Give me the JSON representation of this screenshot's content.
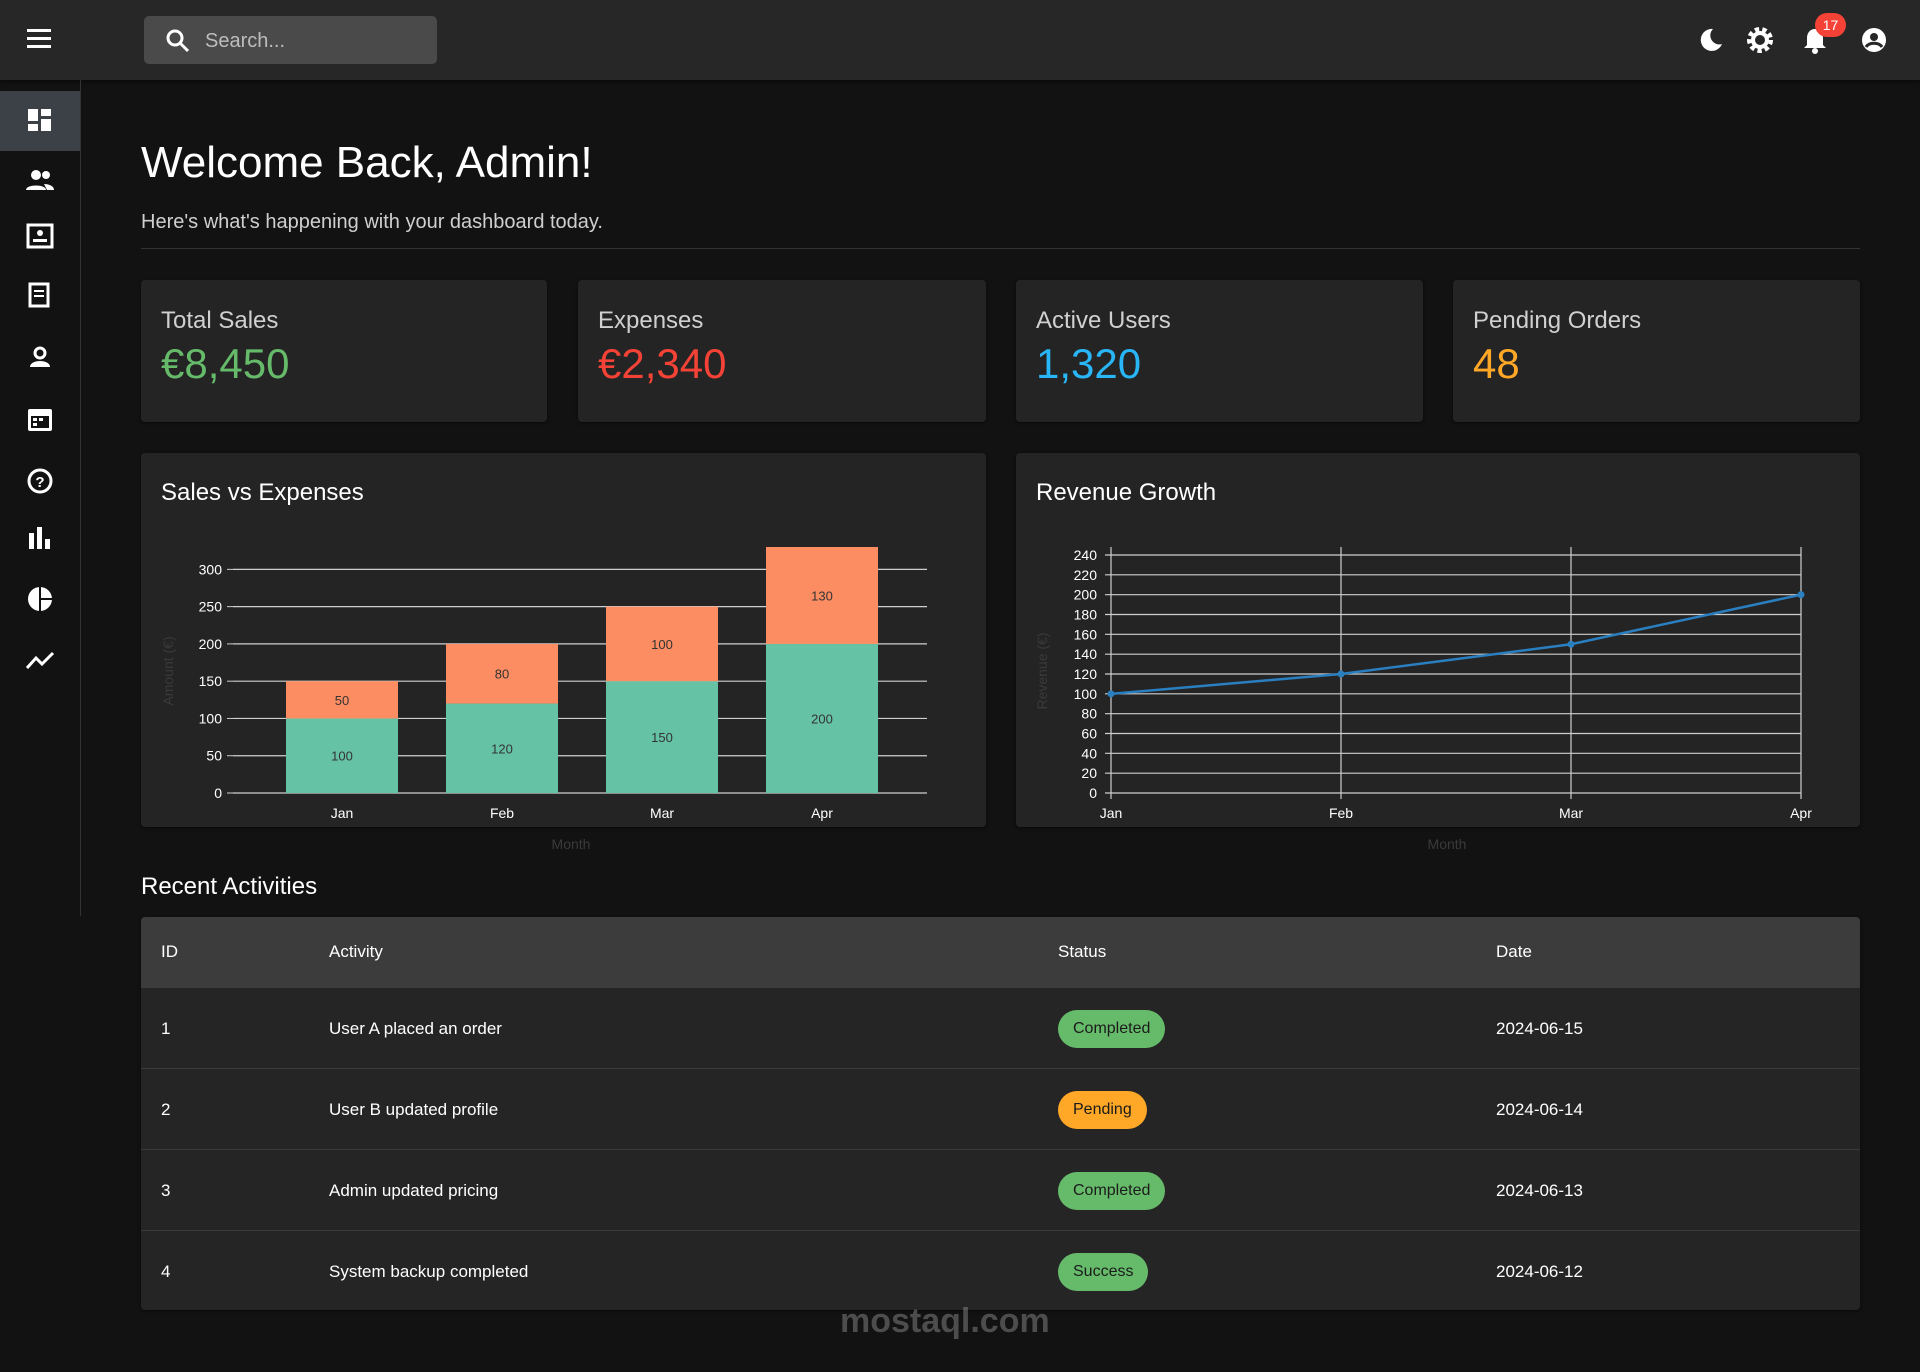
{
  "header": {
    "search_placeholder": "Search...",
    "notification_count": 17
  },
  "welcome": {
    "title": "Welcome Back, Admin!",
    "subtitle": "Here's what's happening with your dashboard today."
  },
  "stats": [
    {
      "label": "Total Sales",
      "value": "€8,450",
      "color": "#66bb6a"
    },
    {
      "label": "Expenses",
      "value": "€2,340",
      "color": "#f44336"
    },
    {
      "label": "Active Users",
      "value": "1,320",
      "color": "#29b6f6"
    },
    {
      "label": "Pending Orders",
      "value": "48",
      "color": "#ffa726"
    }
  ],
  "chart_data": [
    {
      "type": "bar",
      "stacked": true,
      "title": "Sales vs Expenses",
      "categories": [
        "Jan",
        "Feb",
        "Mar",
        "Apr"
      ],
      "series": [
        {
          "color": "#66c2a5",
          "values": [
            100,
            120,
            150,
            200
          ]
        },
        {
          "color": "#fc8d62",
          "values": [
            50,
            80,
            100,
            130
          ]
        }
      ],
      "xlabel": "Month",
      "ylabel": "Amount (€)",
      "ylim": [
        0,
        330
      ],
      "yticks": [
        0,
        50,
        100,
        150,
        200,
        250,
        300
      ],
      "grid": true
    },
    {
      "type": "line",
      "title": "Revenue Growth",
      "categories": [
        "Jan",
        "Feb",
        "Mar",
        "Apr"
      ],
      "values": [
        100,
        120,
        150,
        200
      ],
      "color": "#2a7fc0",
      "xlabel": "Month",
      "ylabel": "Revenue (€)",
      "ylim": [
        0,
        240
      ],
      "yticks": [
        0,
        20,
        40,
        60,
        80,
        100,
        120,
        140,
        160,
        180,
        200,
        220,
        240
      ],
      "grid": true
    }
  ],
  "activities": {
    "title": "Recent Activities",
    "columns": [
      "ID",
      "Activity",
      "Status",
      "Date"
    ],
    "rows": [
      [
        "1",
        "User A placed an order",
        "Completed",
        "2024-06-15"
      ],
      [
        "2",
        "User B updated profile",
        "Pending",
        "2024-06-14"
      ],
      [
        "3",
        "Admin updated pricing",
        "Completed",
        "2024-06-13"
      ],
      [
        "4",
        "System backup completed",
        "Success",
        "2024-06-12"
      ]
    ],
    "status_colors": {
      "Completed": "#66bb6a",
      "Pending": "#ffa726",
      "Success": "#66bb6a"
    }
  },
  "watermark": "mostaql.com"
}
